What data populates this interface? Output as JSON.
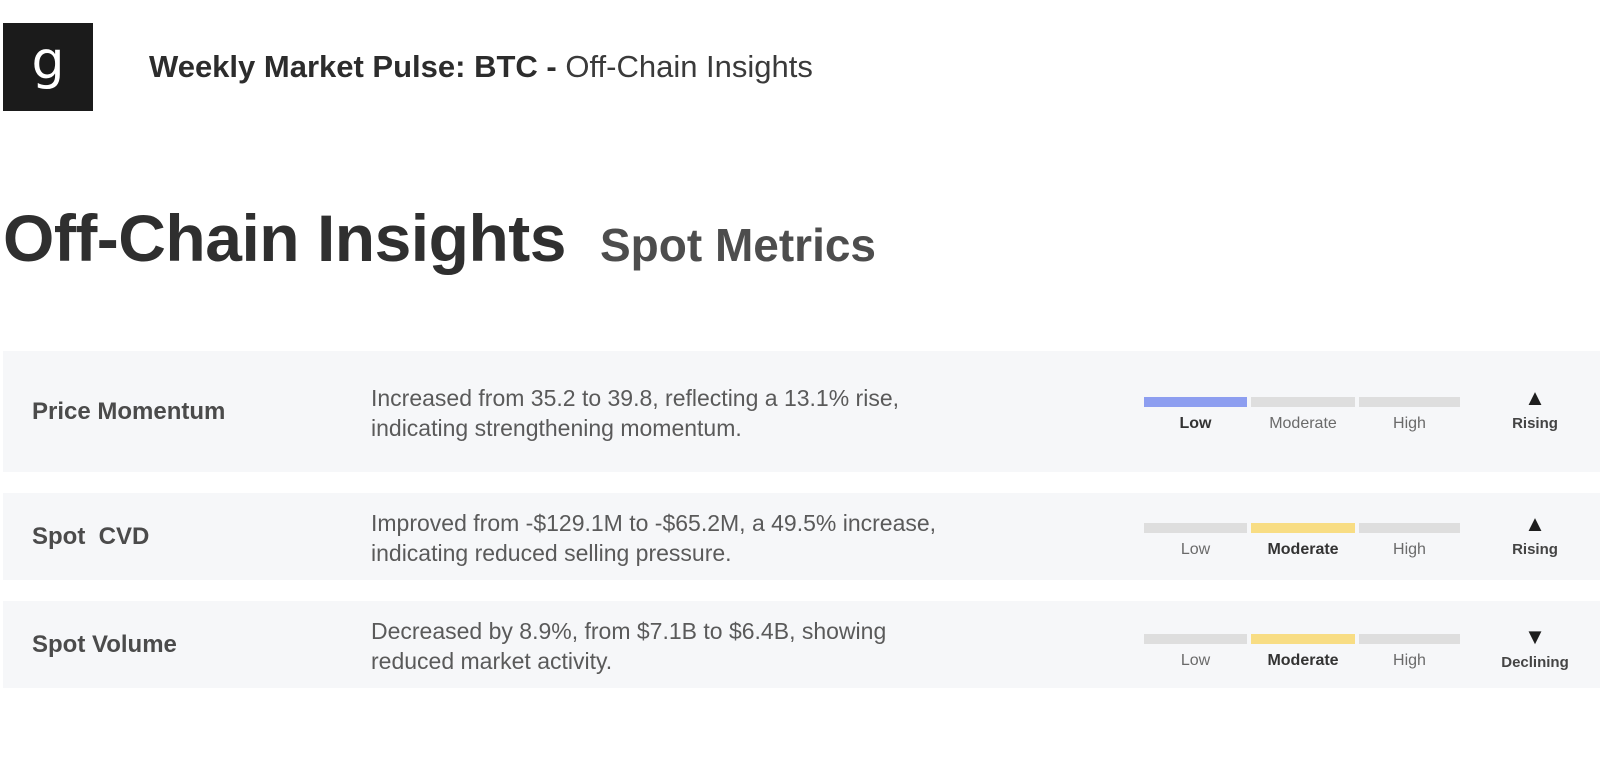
{
  "header": {
    "logo_letter": "g",
    "title_bold": "Weekly Market Pulse: BTC - ",
    "title_light": "Off-Chain Insights"
  },
  "heading": {
    "main": "Off-Chain Insights",
    "sub": "Spot Metrics"
  },
  "scale_labels": [
    "Low",
    "Moderate",
    "High"
  ],
  "rows": [
    {
      "label": "Price Momentum",
      "description_line1": "Increased from 35.2 to 39.8, reflecting a 13.1% rise,",
      "description_line2": "indicating strengthening momentum.",
      "level": "Low",
      "trend": "Rising",
      "trend_icon": "triangle-up-icon"
    },
    {
      "label": "Spot  CVD",
      "description_line1": "Improved from -$129.1M to -$65.2M, a 49.5% increase,",
      "description_line2": "indicating reduced selling pressure.",
      "level": "Moderate",
      "trend": "Rising",
      "trend_icon": "triangle-up-icon"
    },
    {
      "label": "Spot Volume",
      "description_line1": "Decreased by 8.9%, from $7.1B to $6.4B, showing",
      "description_line2": "reduced market activity.",
      "level": "Moderate",
      "trend": "Declining",
      "trend_icon": "triangle-down-icon"
    }
  ],
  "colors": {
    "low_active": "#8d9ef0",
    "moderate_active": "#f8dd84",
    "inactive": "#dedede",
    "row_background": "#f6f7f9"
  }
}
